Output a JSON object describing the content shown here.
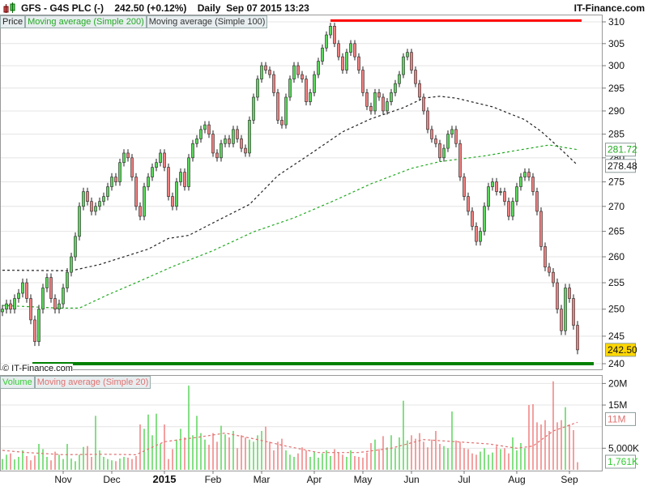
{
  "header": {
    "symbol_title": "GFS - G4S PLC (-)",
    "price": "242.50 (+0.12%)",
    "period": "Daily",
    "datetime": "Sep 07 2015 13:23",
    "site": "IT-Finance.com",
    "copyright": "© IT-Finance.com"
  },
  "legend_price": [
    "Price",
    "Moving average (Simple 200)",
    "Moving average (Simple 100)"
  ],
  "legend_volume": [
    "Volume",
    "Moving average (Simple 20)"
  ],
  "colors": {
    "up": "#5cd65c",
    "down": "#f08080",
    "ma200": "#22aa22",
    "ma100": "#222222",
    "vol_ma": "#e07070",
    "resistance": "#ff0000",
    "support": "#008000",
    "last_price_bg": "#ffd700"
  },
  "chart_data": [
    {
      "type": "candlestick",
      "scale": "log",
      "ylim": [
        240,
        310
      ],
      "yticks": [
        310,
        305,
        300,
        295,
        290,
        285,
        280,
        275,
        270,
        265,
        260,
        255,
        250,
        245,
        240
      ],
      "xtick_labels": [
        {
          "label": "Nov",
          "at": 15
        },
        {
          "label": "Dec",
          "at": 27
        },
        {
          "label": "2015",
          "at": 40
        },
        {
          "label": "Feb",
          "at": 52
        },
        {
          "label": "Mar",
          "at": 64
        },
        {
          "label": "Apr",
          "at": 77
        },
        {
          "label": "May",
          "at": 89
        },
        {
          "label": "Jun",
          "at": 101
        },
        {
          "label": "Jul",
          "at": 114
        },
        {
          "label": "Aug",
          "at": 127
        },
        {
          "label": "Sep",
          "at": 140
        }
      ],
      "closes": [
        250,
        251,
        250,
        252,
        253,
        255,
        252,
        248,
        244,
        250,
        254,
        256,
        252,
        250,
        251,
        254,
        257,
        260,
        264,
        270,
        273,
        271,
        269,
        270,
        271,
        272,
        274,
        276,
        275,
        279,
        281,
        280,
        276,
        270,
        268,
        274,
        276,
        278,
        279,
        281,
        278,
        272,
        270,
        275,
        277,
        274,
        280,
        283,
        284,
        286,
        287,
        285,
        281,
        280,
        283,
        284,
        283,
        286,
        284,
        282,
        281,
        288,
        293,
        297,
        300,
        299,
        298,
        294,
        288,
        287,
        293,
        297,
        300,
        298,
        297,
        292,
        294,
        298,
        301,
        304,
        307,
        309,
        305,
        302,
        299,
        303,
        305,
        302,
        299,
        294,
        291,
        290,
        294,
        293,
        290,
        292,
        294,
        296,
        298,
        302,
        303,
        299,
        296,
        293,
        290,
        286,
        284,
        283,
        280,
        282,
        285,
        286,
        283,
        276,
        272,
        269,
        266,
        263,
        265,
        270,
        274,
        275,
        273,
        273,
        271,
        268,
        271,
        274,
        276,
        277,
        276,
        273,
        269,
        262,
        258,
        257,
        255,
        250,
        246,
        254,
        252,
        247,
        242.5
      ],
      "ma200": [
        [
          0,
          250.7
        ],
        [
          14,
          250.2
        ],
        [
          19,
          250.2
        ],
        [
          26,
          252.7
        ],
        [
          33,
          255.0
        ],
        [
          42,
          258.1
        ],
        [
          52,
          261.2
        ],
        [
          62,
          264.9
        ],
        [
          72,
          267.7
        ],
        [
          82,
          271.2
        ],
        [
          91,
          274.6
        ],
        [
          101,
          277.8
        ],
        [
          108,
          279.2
        ],
        [
          119,
          280.4
        ],
        [
          128,
          281.7
        ],
        [
          135,
          282.7
        ],
        [
          142,
          281.72
        ]
      ],
      "ma100": [
        [
          0,
          257.4
        ],
        [
          17,
          257.3
        ],
        [
          24,
          258.5
        ],
        [
          36,
          261.5
        ],
        [
          41,
          263.6
        ],
        [
          46,
          264.2
        ],
        [
          53,
          267.1
        ],
        [
          61,
          270.4
        ],
        [
          68,
          276.3
        ],
        [
          76,
          280.8
        ],
        [
          84,
          285.5
        ],
        [
          91,
          288.3
        ],
        [
          99,
          290.7
        ],
        [
          104,
          292.8
        ],
        [
          108,
          293.2
        ],
        [
          112,
          292.8
        ],
        [
          121,
          290.9
        ],
        [
          129,
          288.1
        ],
        [
          133,
          285.6
        ],
        [
          137,
          282.5
        ],
        [
          142,
          278.48
        ]
      ],
      "resistance": 310.3,
      "support": 240,
      "last_labels": [
        {
          "text": "281.72",
          "value": 281.72,
          "series": "ma200"
        },
        {
          "text": "278.48",
          "value": 278.48,
          "series": "ma100"
        },
        {
          "text": "242.50",
          "value": 242.5,
          "series": "price"
        }
      ]
    },
    {
      "type": "bar",
      "ylabel": "Volume",
      "unit": "M",
      "ylim": [
        0,
        22
      ],
      "ytick_labels": [
        {
          "label": "20M",
          "value": 20
        },
        {
          "label": "15M",
          "value": 15
        },
        {
          "label": "5,000K",
          "value": 5
        }
      ],
      "values": [
        2.5,
        3.5,
        3.8,
        2.4,
        3,
        4.5,
        3.2,
        2.2,
        3.3,
        6,
        4.8,
        3,
        2.2,
        4.2,
        3.5,
        2.5,
        6,
        2.6,
        2,
        3.5,
        5.3,
        5.5,
        3,
        12.5,
        4.5,
        3,
        2.5,
        2.2,
        2,
        2.6,
        3,
        2.8,
        2.5,
        3.2,
        10.5,
        9.5,
        12.8,
        8,
        13,
        6,
        10.5,
        2.5,
        4.8,
        7,
        9.5,
        7.5,
        19.5,
        8,
        12.5,
        8.5,
        7,
        5.8,
        8.5,
        6.5,
        10.2,
        8.2,
        7.5,
        9,
        5,
        8,
        7.5,
        7,
        6.5,
        8,
        9,
        10,
        6.5,
        4.5,
        6.5,
        7.2,
        4.5,
        3.5,
        3,
        3.8,
        5.2,
        4.5,
        3,
        4.2,
        2.8,
        3.8,
        4.5,
        3.2,
        4.8,
        4,
        3.5,
        3,
        4.5,
        3.2,
        3,
        2.8,
        4,
        6.2,
        7,
        4.8,
        7.8,
        5.2,
        8,
        5,
        7.5,
        16,
        6.8,
        8,
        7.2,
        8.5,
        6.5,
        5.2,
        7,
        9,
        6,
        5.5,
        5,
        13.5,
        6.8,
        6.5,
        5,
        4.8,
        3.8,
        3.5,
        4.2,
        5,
        3.5,
        4,
        5.5,
        4.8,
        5,
        3.8,
        7.5,
        4.5,
        6.2,
        5,
        15,
        15.2,
        11,
        10.5,
        11.5,
        9,
        20.5,
        11,
        11.5,
        14.5,
        10.5,
        9.2,
        1.761
      ],
      "ma20": [
        [
          0,
          4.5
        ],
        [
          6,
          4
        ],
        [
          15,
          3.5
        ],
        [
          25,
          3.6
        ],
        [
          33,
          3.5
        ],
        [
          40,
          6.5
        ],
        [
          48,
          7.5
        ],
        [
          55,
          8.5
        ],
        [
          62,
          7.2
        ],
        [
          70,
          5.5
        ],
        [
          78,
          4
        ],
        [
          88,
          4
        ],
        [
          96,
          5
        ],
        [
          104,
          7
        ],
        [
          112,
          6.5
        ],
        [
          120,
          6
        ],
        [
          127,
          5
        ],
        [
          131,
          5.5
        ],
        [
          136,
          9
        ],
        [
          142,
          11
        ]
      ],
      "last_labels": [
        {
          "text": "11M",
          "value": 11,
          "series": "ma20"
        },
        {
          "text": "1,761K",
          "value": 1.761,
          "series": "volume"
        }
      ]
    }
  ]
}
